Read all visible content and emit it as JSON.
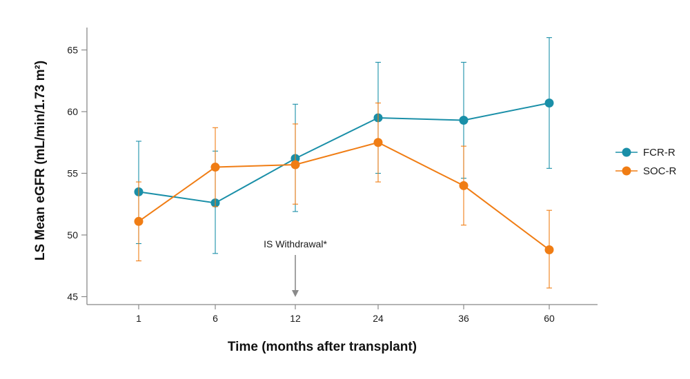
{
  "chart_data": {
    "type": "line",
    "xlabel": "Time (months after transplant)",
    "ylabel": "LS Mean eGFR (mL/min/1.73 m²)",
    "categories": [
      "1",
      "6",
      "12",
      "24",
      "36",
      "60"
    ],
    "ylim": [
      45,
      67
    ],
    "yticks": [
      45,
      50,
      55,
      60,
      65
    ],
    "grid": false,
    "legend_position": "right",
    "series": [
      {
        "name": "FCR-R",
        "color": "#1a8fa8",
        "values": [
          53.5,
          52.6,
          56.2,
          59.5,
          59.3,
          60.7
        ],
        "err_low": [
          49.3,
          48.5,
          51.9,
          55.0,
          54.6,
          55.4
        ],
        "err_high": [
          57.6,
          56.8,
          60.6,
          64.0,
          64.0,
          66.0
        ]
      },
      {
        "name": "SOC-R",
        "color": "#f07d14",
        "values": [
          51.1,
          55.5,
          55.7,
          57.5,
          54.0,
          48.8
        ],
        "err_low": [
          47.9,
          52.3,
          52.5,
          54.3,
          50.8,
          45.7
        ],
        "err_high": [
          54.3,
          58.7,
          59.0,
          60.7,
          57.2,
          52.0
        ]
      }
    ],
    "annotations": [
      {
        "text": "IS Withdrawal*",
        "x": "12",
        "y": 45,
        "arrow": "down"
      }
    ]
  }
}
